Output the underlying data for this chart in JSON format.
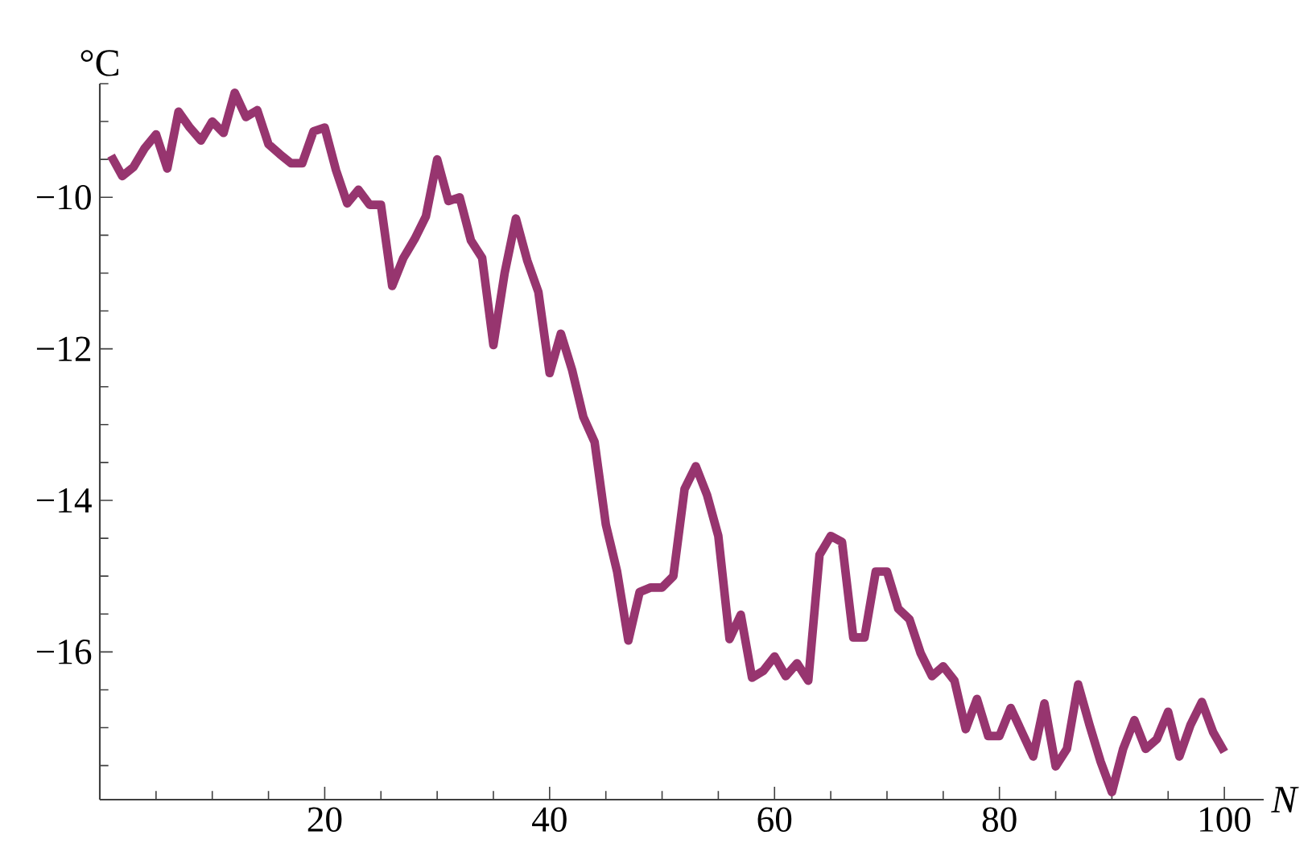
{
  "chart_data": {
    "type": "line",
    "xlabel": "N",
    "ylabel": "°C",
    "x": [
      1,
      2,
      3,
      4,
      5,
      6,
      7,
      8,
      9,
      10,
      11,
      12,
      13,
      14,
      15,
      16,
      17,
      18,
      19,
      20,
      21,
      22,
      23,
      24,
      25,
      26,
      27,
      28,
      29,
      30,
      31,
      32,
      33,
      34,
      35,
      36,
      37,
      38,
      39,
      40,
      41,
      42,
      43,
      44,
      45,
      46,
      47,
      48,
      49,
      50,
      51,
      52,
      53,
      54,
      55,
      56,
      57,
      58,
      59,
      60,
      61,
      62,
      63,
      64,
      65,
      66,
      67,
      68,
      69,
      70,
      71,
      72,
      73,
      74,
      75,
      76,
      77,
      78,
      79,
      80,
      81,
      82,
      83,
      84,
      85,
      86,
      87,
      88,
      89,
      90,
      91,
      92,
      93,
      94,
      95,
      96,
      97,
      98,
      99,
      100
    ],
    "series": [
      {
        "color": "#97356f",
        "values": [
          -9.45,
          -9.72,
          -9.6,
          -9.35,
          -9.17,
          -9.62,
          -8.87,
          -9.08,
          -9.25,
          -9.0,
          -9.15,
          -8.62,
          -8.94,
          -8.85,
          -9.3,
          -9.43,
          -9.55,
          -9.55,
          -9.13,
          -9.08,
          -9.64,
          -10.08,
          -9.9,
          -10.1,
          -10.1,
          -11.17,
          -10.8,
          -10.55,
          -10.25,
          -9.5,
          -10.05,
          -10.0,
          -10.57,
          -10.8,
          -11.95,
          -11.0,
          -10.28,
          -10.83,
          -11.25,
          -12.32,
          -11.8,
          -12.28,
          -12.9,
          -13.23,
          -14.32,
          -14.94,
          -15.85,
          -15.21,
          -15.15,
          -15.15,
          -15.0,
          -13.85,
          -13.55,
          -13.93,
          -14.47,
          -15.83,
          -15.51,
          -16.34,
          -16.25,
          -16.06,
          -16.32,
          -16.15,
          -16.38,
          -14.72,
          -14.47,
          -14.55,
          -15.81,
          -15.81,
          -14.94,
          -14.94,
          -15.43,
          -15.57,
          -16.02,
          -16.32,
          -16.19,
          -16.38,
          -17.02,
          -16.62,
          -17.11,
          -17.11,
          -16.74,
          -17.06,
          -17.38,
          -16.68,
          -17.51,
          -17.28,
          -16.43,
          -16.96,
          -17.45,
          -17.85,
          -17.28,
          -16.9,
          -17.28,
          -17.15,
          -16.79,
          -17.38,
          -16.96,
          -16.66,
          -17.06,
          -17.32
        ]
      }
    ],
    "xlim": [
      0,
      103.5
    ],
    "ylim": [
      -17.95,
      -8.5
    ],
    "xticks": [
      {
        "value": 5,
        "label": null
      },
      {
        "value": 10,
        "label": null
      },
      {
        "value": 15,
        "label": null
      },
      20,
      {
        "value": 25,
        "label": null
      },
      {
        "value": 30,
        "label": null
      },
      {
        "value": 35,
        "label": null
      },
      40,
      {
        "value": 45,
        "label": null
      },
      {
        "value": 50,
        "label": null
      },
      {
        "value": 55,
        "label": null
      },
      60,
      {
        "value": 65,
        "label": null
      },
      {
        "value": 70,
        "label": null
      },
      {
        "value": 75,
        "label": null
      },
      80,
      {
        "value": 85,
        "label": null
      },
      {
        "value": 90,
        "label": null
      },
      {
        "value": 95,
        "label": null
      },
      100
    ],
    "yticks": [
      {
        "value": -17.5,
        "label": null
      },
      {
        "value": -17,
        "label": null
      },
      {
        "value": -16.5,
        "label": null
      },
      {
        "value": -16,
        "label": "−16"
      },
      {
        "value": -15.5,
        "label": null
      },
      {
        "value": -15,
        "label": null
      },
      {
        "value": -14.5,
        "label": null
      },
      {
        "value": -14,
        "label": "−14"
      },
      {
        "value": -13.5,
        "label": null
      },
      {
        "value": -13,
        "label": null
      },
      {
        "value": -12.5,
        "label": null
      },
      {
        "value": -12,
        "label": "−12"
      },
      {
        "value": -11.5,
        "label": null
      },
      {
        "value": -11,
        "label": null
      },
      {
        "value": -10.5,
        "label": null
      },
      {
        "value": -10,
        "label": "−10"
      },
      {
        "value": -9.5,
        "label": null
      },
      {
        "value": -9,
        "label": null
      },
      {
        "value": -8.5,
        "label": null
      }
    ],
    "grid": false,
    "marker": "none",
    "line_style": "solid"
  }
}
